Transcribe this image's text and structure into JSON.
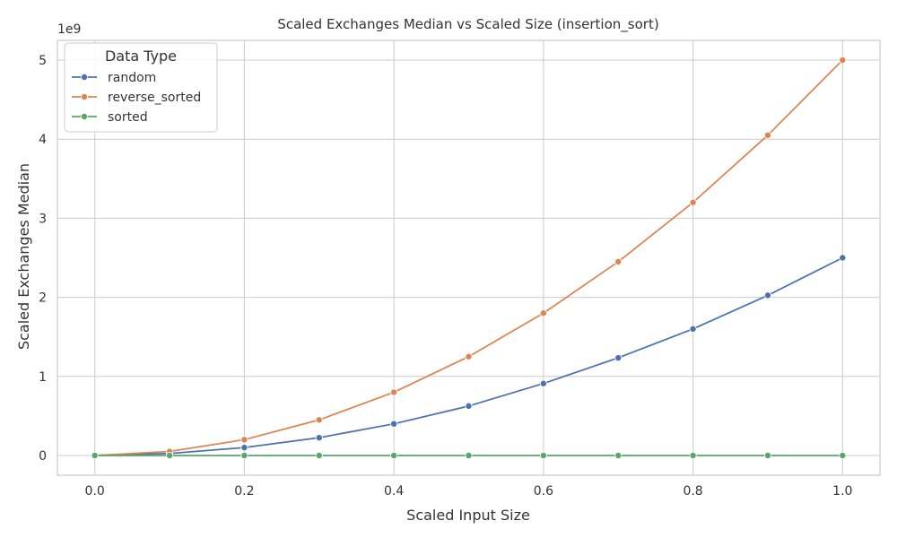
{
  "chart_data": {
    "type": "line",
    "title": "Scaled Exchanges Median vs Scaled Size (insertion_sort)",
    "xlabel": "Scaled Input Size",
    "ylabel": "Scaled Exchanges Median",
    "offset_label": "1e9",
    "x": [
      0.0,
      0.1,
      0.2,
      0.3,
      0.4,
      0.5,
      0.6,
      0.7,
      0.8,
      0.9,
      1.0
    ],
    "xlim": [
      -0.05,
      1.05
    ],
    "ylim": [
      -250000000,
      5250000000
    ],
    "x_ticks": [
      0.0,
      0.2,
      0.4,
      0.6,
      0.8,
      1.0
    ],
    "x_tick_labels": [
      "0.0",
      "0.2",
      "0.4",
      "0.6",
      "0.8",
      "1.0"
    ],
    "y_ticks": [
      0,
      1000000000,
      2000000000,
      3000000000,
      4000000000,
      5000000000
    ],
    "y_tick_labels": [
      "0",
      "1",
      "2",
      "3",
      "4",
      "5"
    ],
    "grid": true,
    "legend": {
      "title": "Data Type",
      "placement": "top-left"
    },
    "series": [
      {
        "name": "random",
        "color": "#4c72b0",
        "values": [
          0,
          25000000,
          100000000,
          225000000,
          400000000,
          625000000,
          910000000,
          1235000000,
          1600000000,
          2025000000,
          2500000000
        ]
      },
      {
        "name": "reverse_sorted",
        "color": "#dd8452",
        "values": [
          0,
          50000000,
          200000000,
          450000000,
          800000000,
          1250000000,
          1800000000,
          2450000000,
          3200000000,
          4050000000,
          5000000000
        ]
      },
      {
        "name": "sorted",
        "color": "#55a868",
        "values": [
          0,
          0,
          0,
          0,
          0,
          0,
          0,
          0,
          0,
          0,
          0
        ]
      }
    ]
  }
}
